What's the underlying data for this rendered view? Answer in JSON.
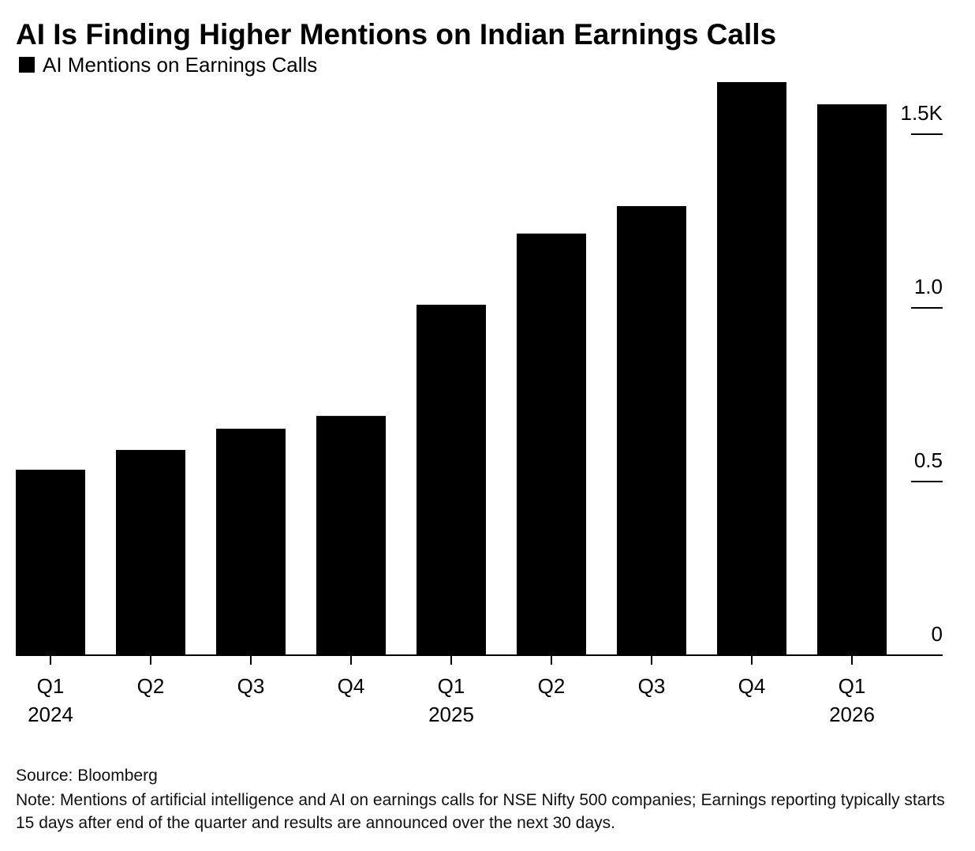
{
  "chart_data": {
    "type": "bar",
    "title": "AI Is Finding Higher Mentions on Indian Earnings Calls",
    "categories": [
      "Q1",
      "Q2",
      "Q3",
      "Q4",
      "Q1",
      "Q2",
      "Q3",
      "Q4",
      "Q1"
    ],
    "category_years": [
      "2024",
      null,
      null,
      null,
      "2025",
      null,
      null,
      null,
      "2026"
    ],
    "series": [
      {
        "name": "AI Mentions on Earnings Calls",
        "color": "#000000",
        "values": [
          0.534,
          0.591,
          0.652,
          0.689,
          1.009,
          1.214,
          1.293,
          1.65,
          1.586
        ]
      }
    ],
    "ylim": [
      0,
      1.65
    ],
    "yticks": [
      0,
      0.5,
      {
        "value": 1,
        "label": "1.0"
      },
      {
        "value": 1.5,
        "label": "1.5K"
      }
    ],
    "y_axis_side": "right",
    "source": "Source: Bloomberg",
    "note": "Note: Mentions of artificial intelligence and AI on earnings calls for NSE Nifty 500 companies; Earnings reporting typically starts 15 days after end of the quarter and results are announced over the next 30 days."
  }
}
